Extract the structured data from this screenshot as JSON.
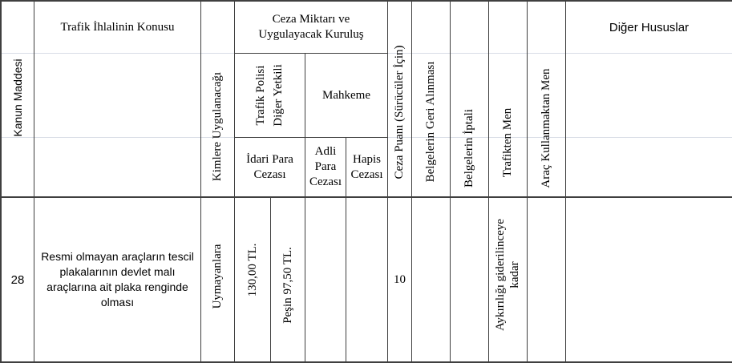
{
  "header": {
    "law_article": "Kanun Maddesi",
    "violation_subject": "Trafik İhlalinin Konusu",
    "applied_to": "Kimlere Uygulanacağı",
    "penalty_amount": "Ceza Miktarı ve\nUygulayacak Kuruluş",
    "traffic_police": "Trafik Polisi\nDiğer Yetkili",
    "court": "Mahkeme",
    "admin_fine": "İdari Para\nCezası",
    "judicial_fine": "Adli\nPara\nCezası",
    "prison": "Hapis\nCezası",
    "penalty_points": "Ceza Puanı (Sürücüler İçin)",
    "document_seizure": "Belgelerin Geri Alınması",
    "document_cancellation": "Belgelerin İptali",
    "traffic_ban": "Trafikten Men",
    "vehicle_use_ban": "Araç Kullanmaktan Men",
    "other_matters": "Diğer Hususlar"
  },
  "row": {
    "article": "28",
    "violation_subject": "Resmi olmayan araçların tescil plakalarının devlet malı araçlarına ait plaka renginde olması",
    "applied_to": "Uymayanlara",
    "admin_fine": "130,00 TL.",
    "admin_fine_cash": "Peşin 97,50 TL.",
    "penalty_points": "10",
    "traffic_ban": "Aykırılığı giderilinceye\nkadar"
  }
}
